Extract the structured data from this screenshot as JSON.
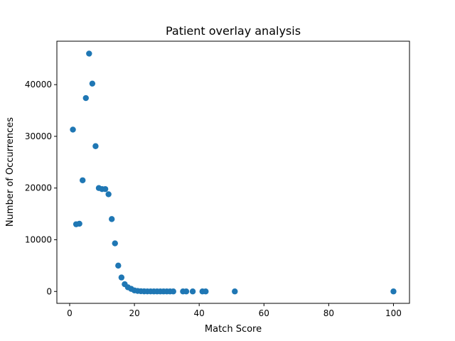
{
  "chart_data": {
    "type": "scatter",
    "title": "Patient overlay analysis",
    "xlabel": "Match Score",
    "ylabel": "Number of Occurrences",
    "xlim": [
      -3.95,
      104.95
    ],
    "ylim": [
      -2300,
      48400
    ],
    "xticks": [
      0,
      20,
      40,
      60,
      80,
      100
    ],
    "yticks": [
      0,
      10000,
      20000,
      30000,
      40000
    ],
    "grid": false,
    "color": "#1f77b4",
    "x": [
      1,
      2,
      3,
      4,
      5,
      6,
      7,
      8,
      9,
      10,
      11,
      12,
      13,
      14,
      15,
      16,
      17,
      18,
      19,
      20,
      21,
      22,
      23,
      24,
      25,
      26,
      27,
      28,
      29,
      30,
      31,
      32,
      35,
      36,
      38,
      41,
      42,
      51,
      100
    ],
    "y": [
      31300,
      13000,
      13100,
      21500,
      37400,
      46000,
      40200,
      28100,
      20000,
      19800,
      19800,
      18800,
      14000,
      9300,
      5000,
      2700,
      1400,
      800,
      500,
      200,
      100,
      50,
      20,
      10,
      10,
      5,
      5,
      5,
      5,
      5,
      5,
      5,
      5,
      5,
      5,
      5,
      5,
      5,
      5
    ]
  }
}
